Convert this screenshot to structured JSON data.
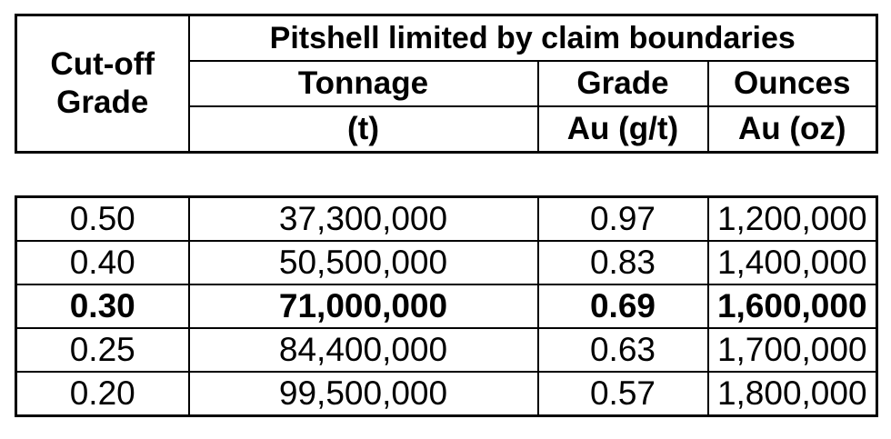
{
  "page": {
    "background": "#ffffff",
    "border_color": "#000000",
    "text_color": "#000000"
  },
  "table": {
    "cutoff_header": {
      "line1": "Cut-off",
      "line2": "Grade"
    },
    "group_header": "Pitshell limited by claim boundaries",
    "sub_headers": {
      "tonnage": "Tonnage",
      "grade": "Grade",
      "ounces": "Ounces"
    },
    "units": {
      "tonnage": "(t)",
      "grade": "Au (g/t)",
      "ounces": "Au (oz)"
    },
    "rows": [
      {
        "cutoff": "0.50",
        "tonnage": "37,300,000",
        "grade": "0.97",
        "ounces": "1,200,000",
        "bold": false
      },
      {
        "cutoff": "0.40",
        "tonnage": "50,500,000",
        "grade": "0.83",
        "ounces": "1,400,000",
        "bold": false
      },
      {
        "cutoff": "0.30",
        "tonnage": "71,000,000",
        "grade": "0.69",
        "ounces": "1,600,000",
        "bold": true
      },
      {
        "cutoff": "0.25",
        "tonnage": "84,400,000",
        "grade": "0.63",
        "ounces": "1,700,000",
        "bold": false
      },
      {
        "cutoff": "0.20",
        "tonnage": "99,500,000",
        "grade": "0.57",
        "ounces": "1,800,000",
        "bold": false
      }
    ]
  },
  "chart_data": {
    "type": "table",
    "title": "Pitshell limited by claim boundaries",
    "columns": [
      "Cut-off Grade",
      "Tonnage (t)",
      "Grade Au (g/t)",
      "Ounces Au (oz)"
    ],
    "rows": [
      [
        0.5,
        37300000,
        0.97,
        1200000
      ],
      [
        0.4,
        50500000,
        0.83,
        1400000
      ],
      [
        0.3,
        71000000,
        0.69,
        1600000
      ],
      [
        0.25,
        84400000,
        0.63,
        1700000
      ],
      [
        0.2,
        99500000,
        0.57,
        1800000
      ]
    ],
    "highlighted_row_index": 2,
    "notes": "Row for cut-off 0.30 is shown in bold emphasis"
  }
}
